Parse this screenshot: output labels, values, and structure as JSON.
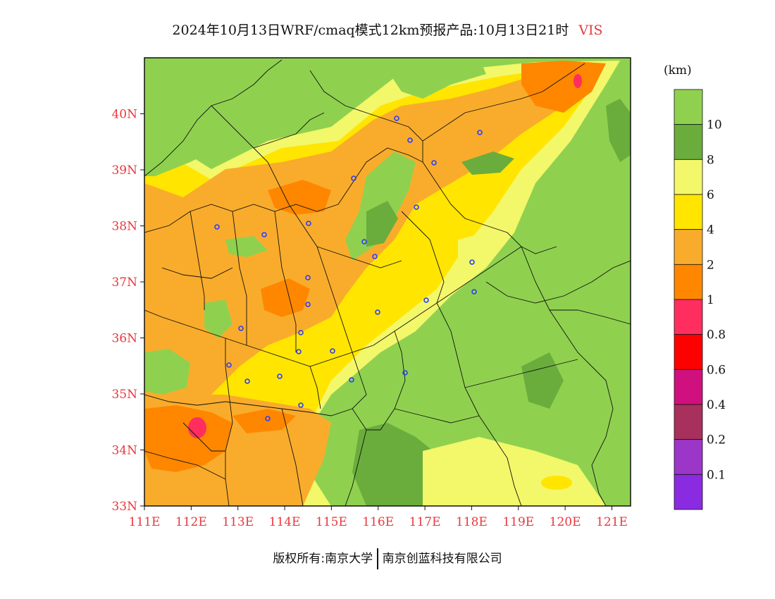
{
  "title": {
    "main": "2024年10月13日WRF/cmaq模式12km预报产品:10月13日21时",
    "variable": "VIS"
  },
  "unit_label": "(km)",
  "axes": {
    "lat_labels": [
      "40N",
      "39N",
      "38N",
      "37N",
      "36N",
      "35N",
      "34N",
      "33N"
    ],
    "lat_values": [
      40,
      39,
      38,
      37,
      36,
      35,
      34,
      33
    ],
    "lon_labels": [
      "111E",
      "112E",
      "113E",
      "114E",
      "115E",
      "116E",
      "117E",
      "118E",
      "119E",
      "120E",
      "121E"
    ],
    "lon_values": [
      111,
      112,
      113,
      114,
      115,
      116,
      117,
      118,
      119,
      120,
      121
    ],
    "lat_range": [
      33,
      41
    ],
    "lon_range": [
      111,
      121.4
    ],
    "label_color": "#e8383d"
  },
  "legend": {
    "labels": [
      "10",
      "8",
      "6",
      "4",
      "2",
      "1",
      "0.8",
      "0.6",
      "0.4",
      "0.2",
      "0.1"
    ],
    "colors": [
      "#8fd14f",
      "#6aad3c",
      "#f3f76a",
      "#ffe500",
      "#f9ac2b",
      "#ff8700",
      "#ff2e5e",
      "#ff0000",
      "#d0107f",
      "#a8305c",
      "#9b36c9",
      "#8a2be2"
    ]
  },
  "footer": {
    "left": "版权所有:南京大学",
    "right": "南京创蓝科技有限公司"
  }
}
